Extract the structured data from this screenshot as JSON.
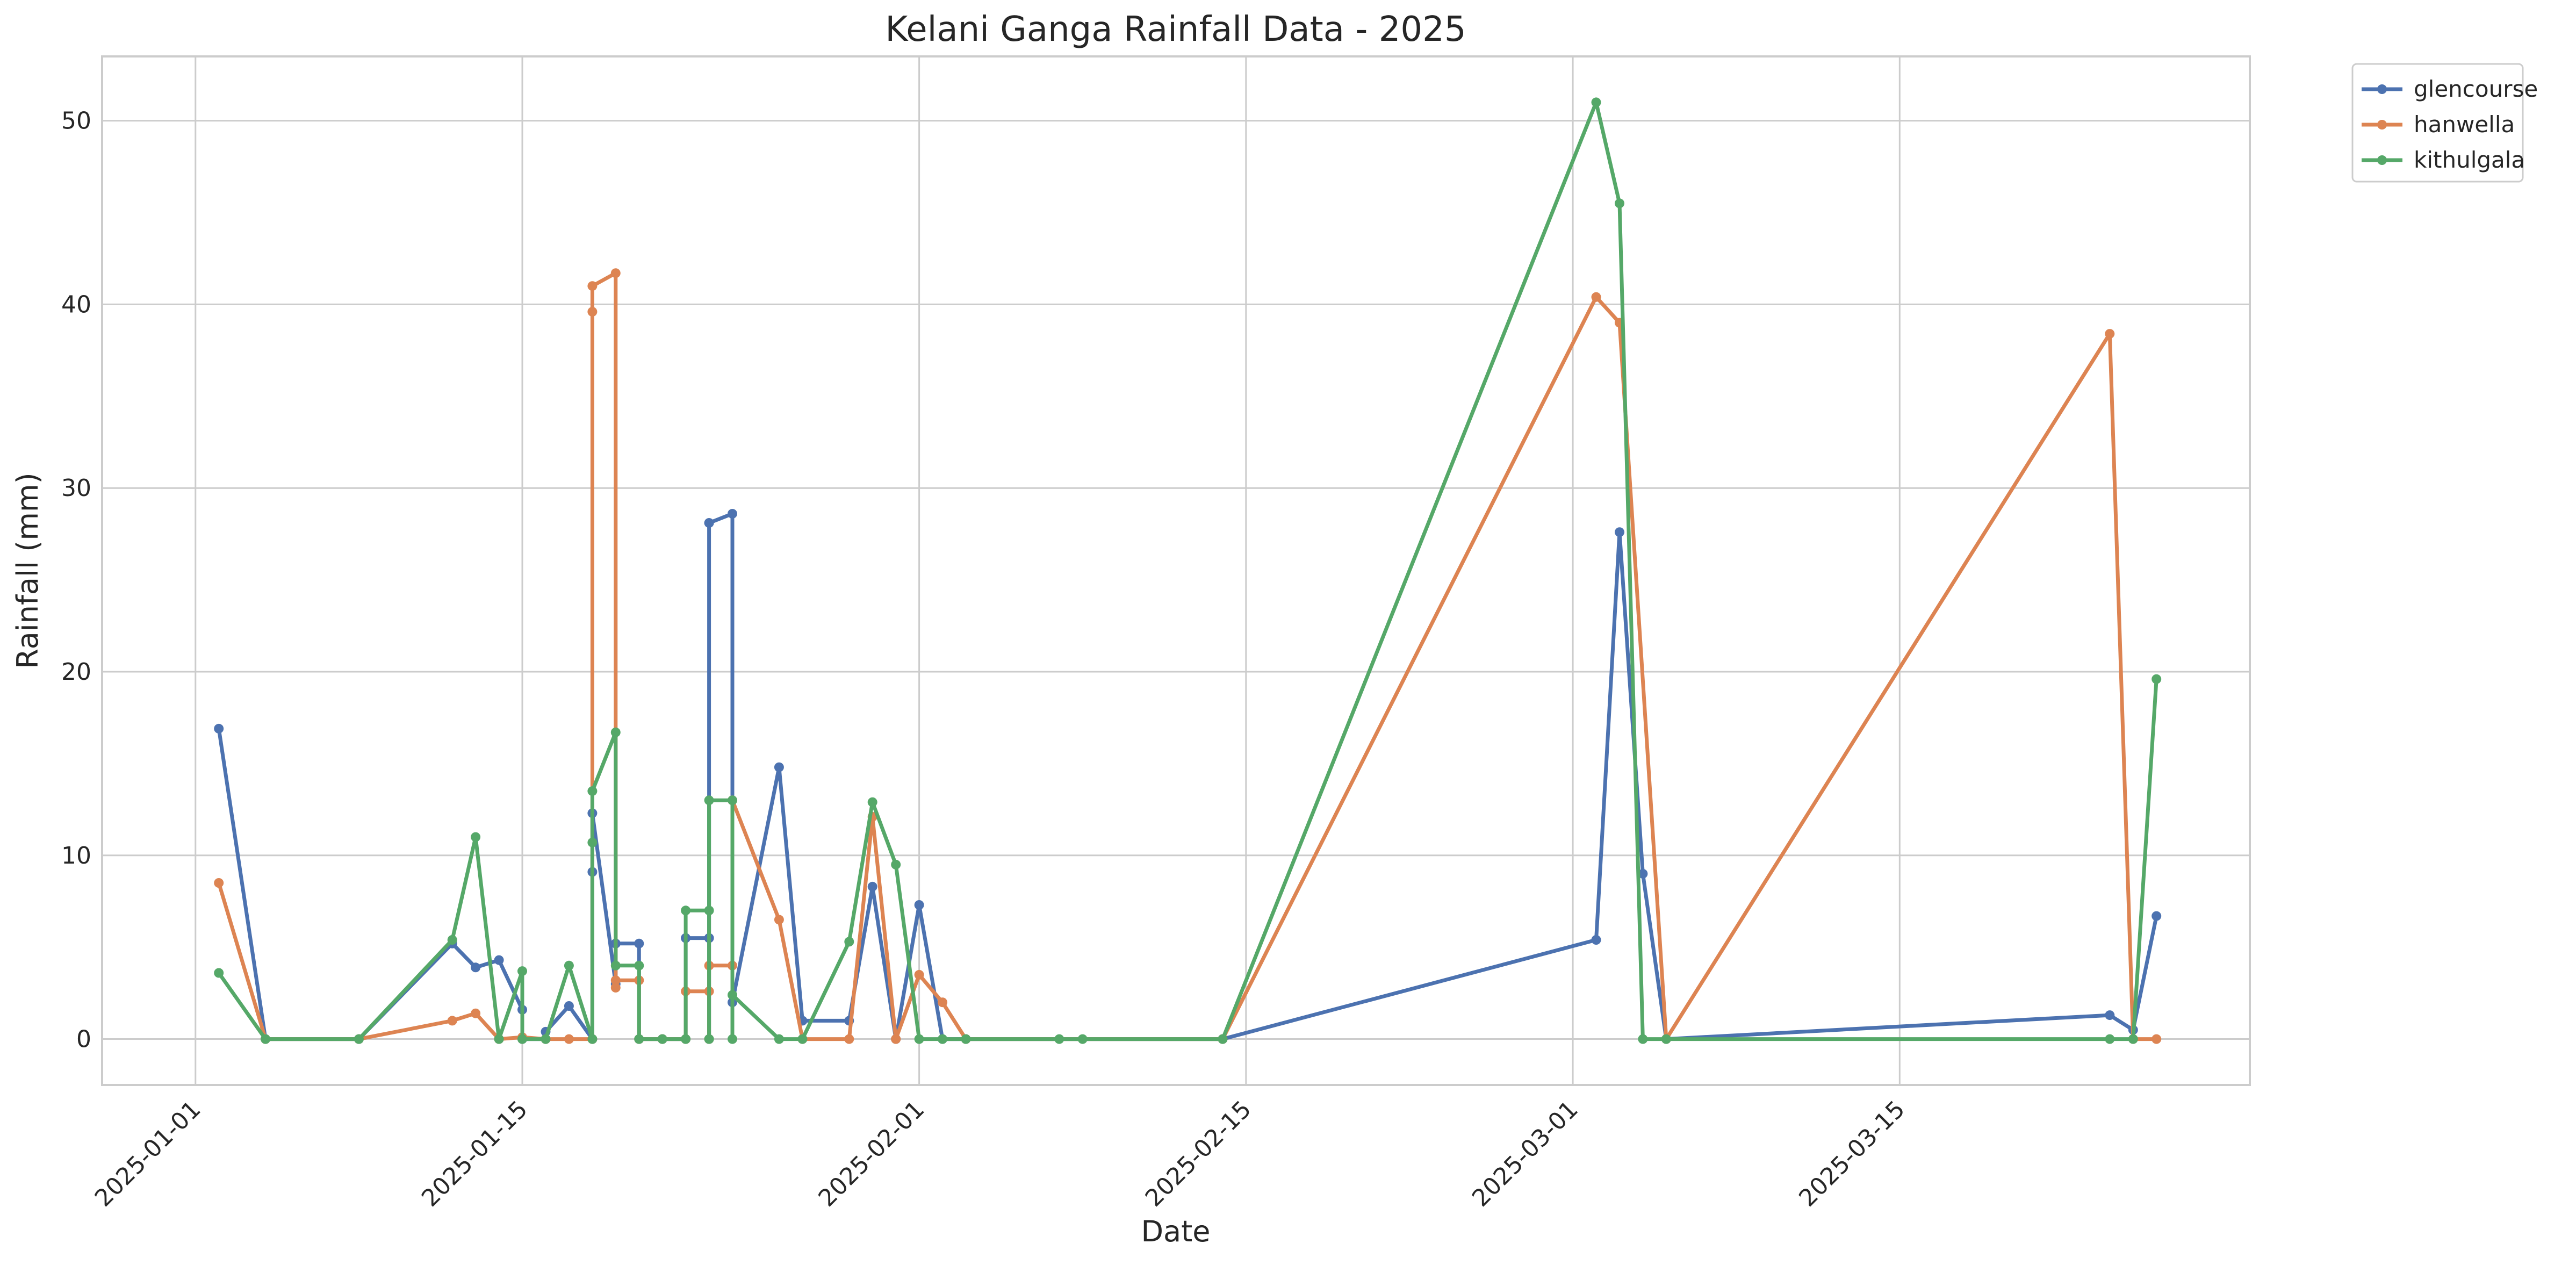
{
  "chart_data": {
    "type": "line",
    "title": "Kelani Ganga Rainfall Data - 2025",
    "xlabel": "Date",
    "ylabel": "Rainfall (mm)",
    "x_axis_type": "date",
    "xlim": [
      "2024-12-28",
      "2025-03-30"
    ],
    "ylim": [
      -2.5,
      53.5
    ],
    "x_ticks": [
      "2025-01-01",
      "2025-01-15",
      "2025-02-01",
      "2025-02-15",
      "2025-03-01",
      "2025-03-15"
    ],
    "y_ticks": [
      0,
      10,
      20,
      30,
      40,
      50
    ],
    "grid": true,
    "legend_position": "outside-top-right",
    "series": [
      {
        "name": "glencourse",
        "color": "#4c72b0",
        "points": [
          [
            "2025-01-02",
            16.9
          ],
          [
            "2025-01-04",
            0
          ],
          [
            "2025-01-08",
            0
          ],
          [
            "2025-01-12",
            5.2
          ],
          [
            "2025-01-13",
            3.9
          ],
          [
            "2025-01-14",
            4.3
          ],
          [
            "2025-01-15",
            1.6
          ],
          [
            "2025-01-15",
            0
          ],
          [
            "2025-01-16",
            0
          ],
          [
            "2025-01-16",
            0.4
          ],
          [
            "2025-01-17",
            1.8
          ],
          [
            "2025-01-18",
            0
          ],
          [
            "2025-01-18",
            9.1
          ],
          [
            "2025-01-18",
            12.3
          ],
          [
            "2025-01-19",
            3
          ],
          [
            "2025-01-19",
            5.2
          ],
          [
            "2025-01-19",
            5.2
          ],
          [
            "2025-01-20",
            5.2
          ],
          [
            "2025-01-20",
            0
          ],
          [
            "2025-01-21",
            0
          ],
          [
            "2025-01-21",
            0
          ],
          [
            "2025-01-22",
            0
          ],
          [
            "2025-01-22",
            5.5
          ],
          [
            "2025-01-22",
            5.5
          ],
          [
            "2025-01-23",
            5.5
          ],
          [
            "2025-01-23",
            5.5
          ],
          [
            "2025-01-23",
            0
          ],
          [
            "2025-01-23",
            28.1
          ],
          [
            "2025-01-23",
            28.1
          ],
          [
            "2025-01-24",
            28.6
          ],
          [
            "2025-01-24",
            2
          ],
          [
            "2025-01-26",
            14.8
          ],
          [
            "2025-01-27",
            1
          ],
          [
            "2025-01-29",
            1
          ],
          [
            "2025-01-30",
            8.3
          ],
          [
            "2025-01-31",
            0
          ],
          [
            "2025-02-01",
            7.3
          ],
          [
            "2025-02-02",
            0
          ],
          [
            "2025-02-03",
            0
          ],
          [
            "2025-02-14",
            0
          ],
          [
            "2025-03-02",
            5.4
          ],
          [
            "2025-03-03",
            27.6
          ],
          [
            "2025-03-04",
            9
          ],
          [
            "2025-03-05",
            0
          ],
          [
            "2025-03-24",
            1.3
          ],
          [
            "2025-03-25",
            0.5
          ],
          [
            "2025-03-26",
            6.7
          ]
        ]
      },
      {
        "name": "hanwella",
        "color": "#dd8452",
        "points": [
          [
            "2025-01-02",
            8.5
          ],
          [
            "2025-01-04",
            0
          ],
          [
            "2025-01-08",
            0
          ],
          [
            "2025-01-12",
            1
          ],
          [
            "2025-01-13",
            1.4
          ],
          [
            "2025-01-14",
            0
          ],
          [
            "2025-01-15",
            0.1
          ],
          [
            "2025-01-16",
            0
          ],
          [
            "2025-01-17",
            0
          ],
          [
            "2025-01-18",
            0
          ],
          [
            "2025-01-18",
            39.6
          ],
          [
            "2025-01-18",
            41
          ],
          [
            "2025-01-19",
            41.7
          ],
          [
            "2025-01-19",
            2.8
          ],
          [
            "2025-01-19",
            3.2
          ],
          [
            "2025-01-20",
            3.2
          ],
          [
            "2025-01-20",
            0
          ],
          [
            "2025-01-21",
            0
          ],
          [
            "2025-01-22",
            0
          ],
          [
            "2025-01-22",
            2.6
          ],
          [
            "2025-01-23",
            2.6
          ],
          [
            "2025-01-23",
            0
          ],
          [
            "2025-01-23",
            4
          ],
          [
            "2025-01-24",
            4
          ],
          [
            "2025-01-24",
            13
          ],
          [
            "2025-01-26",
            6.5
          ],
          [
            "2025-01-27",
            0
          ],
          [
            "2025-01-29",
            0
          ],
          [
            "2025-01-30",
            12.1
          ],
          [
            "2025-01-31",
            0
          ],
          [
            "2025-02-01",
            3.5
          ],
          [
            "2025-02-02",
            2
          ],
          [
            "2025-02-03",
            0
          ],
          [
            "2025-02-14",
            0
          ],
          [
            "2025-03-02",
            40.4
          ],
          [
            "2025-03-03",
            39
          ],
          [
            "2025-03-05",
            0
          ],
          [
            "2025-03-24",
            38.4
          ],
          [
            "2025-03-25",
            0
          ],
          [
            "2025-03-26",
            0
          ]
        ]
      },
      {
        "name": "kithulgala",
        "color": "#55a868",
        "points": [
          [
            "2025-01-02",
            3.6
          ],
          [
            "2025-01-04",
            0
          ],
          [
            "2025-01-08",
            0
          ],
          [
            "2025-01-12",
            5.4
          ],
          [
            "2025-01-13",
            11
          ],
          [
            "2025-01-14",
            0
          ],
          [
            "2025-01-15",
            3.7
          ],
          [
            "2025-01-15",
            0
          ],
          [
            "2025-01-16",
            0
          ],
          [
            "2025-01-17",
            4
          ],
          [
            "2025-01-18",
            0
          ],
          [
            "2025-01-18",
            10.7
          ],
          [
            "2025-01-18",
            13.5
          ],
          [
            "2025-01-19",
            16.7
          ],
          [
            "2025-01-19",
            4
          ],
          [
            "2025-01-20",
            4
          ],
          [
            "2025-01-20",
            0
          ],
          [
            "2025-01-21",
            0
          ],
          [
            "2025-01-22",
            0
          ],
          [
            "2025-01-22",
            7
          ],
          [
            "2025-01-23",
            7
          ],
          [
            "2025-01-23",
            0
          ],
          [
            "2025-01-23",
            13
          ],
          [
            "2025-01-24",
            13
          ],
          [
            "2025-01-24",
            0
          ],
          [
            "2025-01-24",
            2.4
          ],
          [
            "2025-01-26",
            0
          ],
          [
            "2025-01-27",
            0
          ],
          [
            "2025-01-29",
            5.3
          ],
          [
            "2025-01-30",
            12.9
          ],
          [
            "2025-01-31",
            9.5
          ],
          [
            "2025-02-01",
            0
          ],
          [
            "2025-02-02",
            0
          ],
          [
            "2025-02-03",
            0
          ],
          [
            "2025-02-07",
            0
          ],
          [
            "2025-02-08",
            0
          ],
          [
            "2025-02-14",
            0
          ],
          [
            "2025-03-02",
            51
          ],
          [
            "2025-03-03",
            45.5
          ],
          [
            "2025-03-04",
            0
          ],
          [
            "2025-03-05",
            0
          ],
          [
            "2025-03-24",
            0
          ],
          [
            "2025-03-25",
            0
          ],
          [
            "2025-03-26",
            19.6
          ]
        ]
      }
    ]
  }
}
